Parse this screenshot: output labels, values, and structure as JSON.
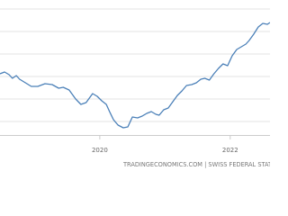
{
  "chart_data": {
    "type": "line",
    "source": "TRADINGECONOMICS.COM | SWISS FEDERAL STATISTIC",
    "x": [
      2018.47,
      2018.54,
      2018.61,
      2018.66,
      2018.72,
      2018.77,
      2018.86,
      2018.95,
      2019.05,
      2019.16,
      2019.27,
      2019.37,
      2019.44,
      2019.53,
      2019.63,
      2019.71,
      2019.79,
      2019.89,
      2019.96,
      2020.03,
      2020.1,
      2020.15,
      2020.21,
      2020.28,
      2020.36,
      2020.43,
      2020.5,
      2020.58,
      2020.65,
      2020.72,
      2020.79,
      2020.86,
      2020.91,
      2020.98,
      2021.05,
      2021.12,
      2021.19,
      2021.26,
      2021.33,
      2021.41,
      2021.48,
      2021.55,
      2021.61,
      2021.68,
      2021.75,
      2021.82,
      2021.89,
      2021.96,
      2022.03,
      2022.1,
      2022.17,
      2022.24,
      2022.29,
      2022.36,
      2022.43,
      2022.5,
      2022.57,
      2022.61
    ],
    "series": [
      {
        "color": "#4b80b8",
        "values": [
          3.12,
          3.2,
          3.08,
          2.92,
          3.04,
          2.88,
          2.72,
          2.56,
          2.56,
          2.68,
          2.64,
          2.48,
          2.52,
          2.4,
          2.0,
          1.76,
          1.84,
          2.24,
          2.12,
          1.92,
          1.76,
          1.44,
          1.08,
          0.84,
          0.72,
          0.76,
          1.2,
          1.16,
          1.24,
          1.36,
          1.44,
          1.32,
          1.28,
          1.52,
          1.6,
          1.88,
          2.16,
          2.36,
          2.6,
          2.64,
          2.72,
          2.88,
          2.92,
          2.84,
          3.12,
          3.36,
          3.56,
          3.48,
          3.92,
          4.2,
          4.32,
          4.44,
          4.6,
          4.88,
          5.2,
          5.36,
          5.32,
          5.4
        ]
      }
    ],
    "xlim": [
      2018.47,
      2022.61
    ],
    "xticks": [
      2020,
      2022
    ],
    "ylim": [
      0.4,
      6.4
    ],
    "yticks": [
      1,
      2,
      3,
      4,
      5,
      6
    ],
    "grid": true
  }
}
